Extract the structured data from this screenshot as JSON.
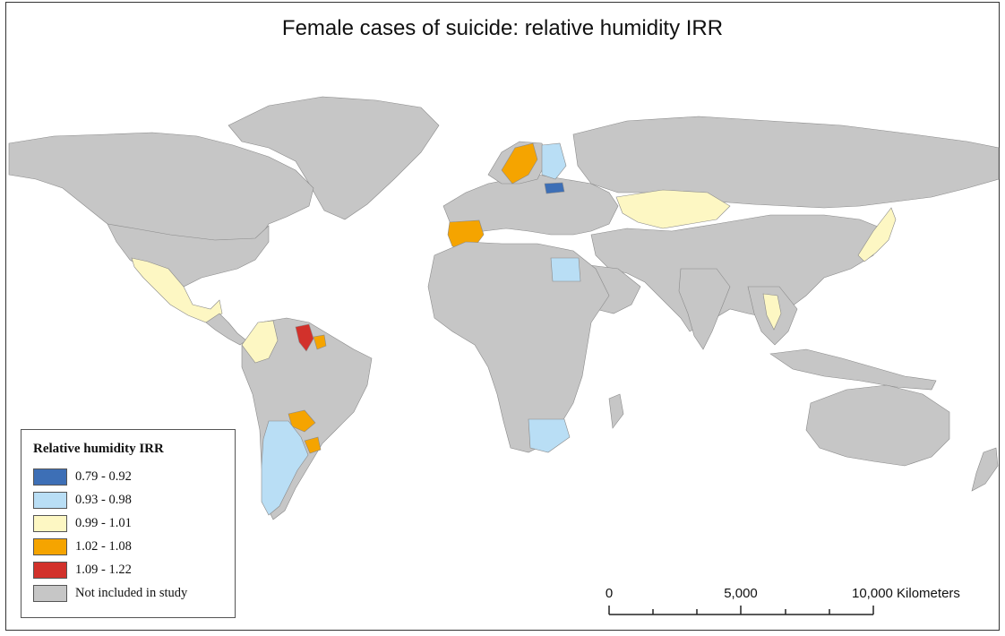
{
  "title": "Female cases of suicide: relative humidity IRR",
  "colors": {
    "background": "#ffffff",
    "land_default": "#c6c6c6",
    "borders": "#8a8a8a"
  },
  "legend": {
    "title": "Relative humidity IRR",
    "items": [
      {
        "label": "0.79 - 0.92",
        "color": "#3d6fb6"
      },
      {
        "label": "0.93 - 0.98",
        "color": "#b9def5"
      },
      {
        "label": "0.99 - 1.01",
        "color": "#fdf7c3"
      },
      {
        "label": "1.02 - 1.08",
        "color": "#f5a400"
      },
      {
        "label": "1.09 - 1.22",
        "color": "#d2312b"
      },
      {
        "label": "Not included in study",
        "color": "#c6c6c6"
      }
    ]
  },
  "scale_bar": {
    "labels": [
      "0",
      "5,000",
      "10,000 Kilometers"
    ]
  },
  "regions": [
    {
      "name": "Sweden",
      "class": "1.02 - 1.08"
    },
    {
      "name": "Finland",
      "class": "0.93 - 0.98"
    },
    {
      "name": "Lithuania",
      "class": "0.79 - 0.92"
    },
    {
      "name": "Spain",
      "class": "1.02 - 1.08"
    },
    {
      "name": "Kazakhstan",
      "class": "0.99 - 1.01"
    },
    {
      "name": "Egypt",
      "class": "0.93 - 0.98"
    },
    {
      "name": "Mexico",
      "class": "0.99 - 1.01"
    },
    {
      "name": "Colombia",
      "class": "0.99 - 1.01"
    },
    {
      "name": "Guyana",
      "class": "1.09 - 1.22"
    },
    {
      "name": "Suriname",
      "class": "1.02 - 1.08"
    },
    {
      "name": "Argentina",
      "class": "0.93 - 0.98"
    },
    {
      "name": "Paraguay",
      "class": "1.02 - 1.08"
    },
    {
      "name": "Uruguay",
      "class": "1.02 - 1.08"
    },
    {
      "name": "South Africa",
      "class": "0.93 - 0.98"
    },
    {
      "name": "Japan",
      "class": "0.99 - 1.01"
    },
    {
      "name": "Thailand",
      "class": "0.99 - 1.01"
    }
  ]
}
